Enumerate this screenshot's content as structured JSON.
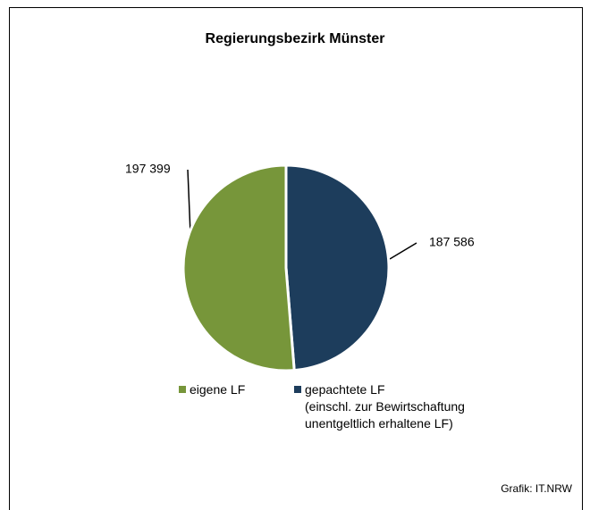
{
  "chart_data": {
    "type": "pie",
    "title": "Regierungsbezirk Münster",
    "categories": [
      "eigene LF",
      "gepachtete LF\n(einschl. zur Bewirtschaftung\nunentgeltlich erhaltene LF)"
    ],
    "values": [
      197399,
      187586
    ],
    "value_labels": [
      "197 399",
      "187 586"
    ],
    "colors": [
      "#77963a",
      "#1d3d5c"
    ],
    "source": "Grafik: IT.NRW"
  }
}
